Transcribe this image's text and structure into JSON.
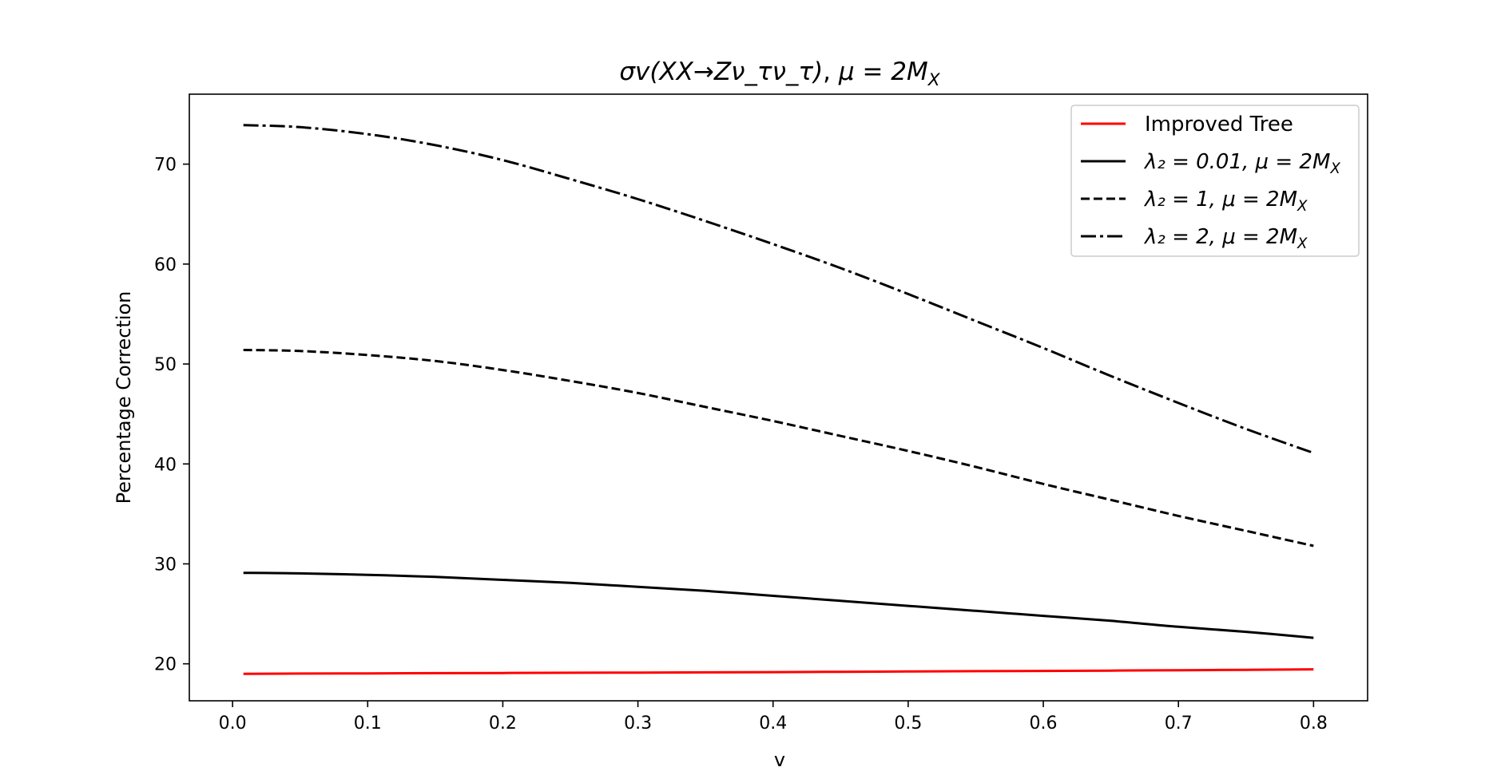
{
  "chart_data": {
    "type": "line",
    "title": "σv(XX→Zν_τν_τ), μ = 2M_X",
    "xlabel": "v",
    "ylabel": "Percentage Correction",
    "xlim": [
      -0.032,
      0.84
    ],
    "ylim": [
      16.3,
      77.0
    ],
    "xticks": [
      "0.0",
      "0.1",
      "0.2",
      "0.3",
      "0.4",
      "0.5",
      "0.6",
      "0.7",
      "0.8"
    ],
    "yticks": [
      "20",
      "30",
      "40",
      "50",
      "60",
      "70"
    ],
    "grid": false,
    "legend_position": "top-right",
    "x": [
      0.008,
      0.05,
      0.1,
      0.15,
      0.2,
      0.25,
      0.3,
      0.35,
      0.4,
      0.45,
      0.5,
      0.55,
      0.6,
      0.65,
      0.7,
      0.75,
      0.8
    ],
    "series": [
      {
        "name": "Improved Tree",
        "color": "#ff0000",
        "style": "solid",
        "values": [
          19.0,
          19.02,
          19.04,
          19.06,
          19.08,
          19.1,
          19.12,
          19.14,
          19.17,
          19.2,
          19.23,
          19.26,
          19.29,
          19.32,
          19.36,
          19.4,
          19.45
        ]
      },
      {
        "name": "λ₂ = 0.01, μ = 2M_X",
        "color": "#000000",
        "style": "solid",
        "values": [
          29.1,
          29.05,
          28.9,
          28.7,
          28.4,
          28.1,
          27.7,
          27.3,
          26.8,
          26.3,
          25.8,
          25.3,
          24.8,
          24.3,
          23.7,
          23.2,
          22.6
        ]
      },
      {
        "name": "λ₂ = 1, μ = 2M_X",
        "color": "#000000",
        "style": "dashed",
        "values": [
          51.4,
          51.3,
          50.9,
          50.3,
          49.4,
          48.3,
          47.1,
          45.7,
          44.3,
          42.8,
          41.3,
          39.7,
          38.0,
          36.4,
          34.8,
          33.3,
          31.8
        ]
      },
      {
        "name": "λ₂ = 2, μ = 2M_X",
        "color": "#000000",
        "style": "dashdot",
        "values": [
          73.9,
          73.7,
          73.0,
          71.9,
          70.4,
          68.5,
          66.5,
          64.3,
          62.0,
          59.6,
          57.0,
          54.3,
          51.6,
          48.8,
          46.1,
          43.5,
          41.1
        ]
      }
    ]
  }
}
